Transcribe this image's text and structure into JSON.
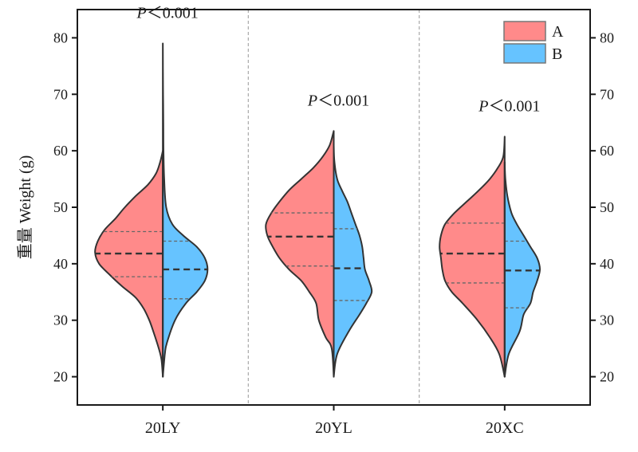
{
  "chart_data": {
    "type": "violin",
    "ylabel": "重量 Weight (g)",
    "ylim": [
      15,
      85
    ],
    "yticks": [
      20,
      30,
      40,
      50,
      60,
      70,
      80
    ],
    "categories": [
      "20LY",
      "20YL",
      "20XC"
    ],
    "legend": {
      "placement": "top-right",
      "entries": [
        {
          "name": "A",
          "color": "#ff8a8a"
        },
        {
          "name": "B",
          "color": "#66c3ff"
        }
      ]
    },
    "annotations": [
      {
        "category": "20LY",
        "italic": "P",
        "text": "＜0.001",
        "y": 83.5
      },
      {
        "category": "20YL",
        "italic": "P",
        "text": "＜0.001",
        "y": 68.0
      },
      {
        "category": "20XC",
        "italic": "P",
        "text": "＜0.001",
        "y": 67.0
      }
    ],
    "violins": [
      {
        "category": "20LY",
        "A": {
          "color": "#ff8a8a",
          "median": 41.8,
          "q1": 37.7,
          "q3": 45.7,
          "profile": [
            [
              20,
              0
            ],
            [
              23,
              0.02
            ],
            [
              25,
              0.06
            ],
            [
              28,
              0.14
            ],
            [
              30,
              0.2
            ],
            [
              32,
              0.28
            ],
            [
              34,
              0.4
            ],
            [
              36,
              0.6
            ],
            [
              38,
              0.78
            ],
            [
              40,
              0.94
            ],
            [
              42,
              1.0
            ],
            [
              44,
              0.96
            ],
            [
              46,
              0.86
            ],
            [
              48,
              0.7
            ],
            [
              50,
              0.56
            ],
            [
              52,
              0.4
            ],
            [
              54,
              0.22
            ],
            [
              56,
              0.1
            ],
            [
              58,
              0.04
            ],
            [
              60,
              0.0
            ]
          ]
        },
        "B": {
          "color": "#66c3ff",
          "median": 39.0,
          "q1": 33.8,
          "q3": 44.0,
          "profile": [
            [
              20,
              0
            ],
            [
              24,
              0.03
            ],
            [
              26,
              0.06
            ],
            [
              30,
              0.18
            ],
            [
              33,
              0.34
            ],
            [
              35,
              0.5
            ],
            [
              37,
              0.62
            ],
            [
              39,
              0.66
            ],
            [
              41,
              0.62
            ],
            [
              43,
              0.5
            ],
            [
              45,
              0.3
            ],
            [
              47,
              0.14
            ],
            [
              50,
              0.05
            ],
            [
              55,
              0.02
            ],
            [
              60,
              0.01
            ],
            [
              65,
              0.008
            ],
            [
              70,
              0.004
            ],
            [
              75,
              0.002
            ],
            [
              79,
              0
            ]
          ]
        }
      },
      {
        "category": "20YL",
        "A": {
          "color": "#ff8a8a",
          "median": 44.8,
          "q1": 39.6,
          "q3": 49.0,
          "profile": [
            [
              20,
              0
            ],
            [
              25,
              0.03
            ],
            [
              27,
              0.12
            ],
            [
              30,
              0.22
            ],
            [
              33,
              0.26
            ],
            [
              35,
              0.36
            ],
            [
              37,
              0.48
            ],
            [
              39,
              0.66
            ],
            [
              41,
              0.8
            ],
            [
              43,
              0.9
            ],
            [
              45,
              0.98
            ],
            [
              47,
              1.0
            ],
            [
              49,
              0.92
            ],
            [
              51,
              0.8
            ],
            [
              53,
              0.66
            ],
            [
              55,
              0.48
            ],
            [
              57,
              0.3
            ],
            [
              59,
              0.16
            ],
            [
              61,
              0.06
            ],
            [
              63.5,
              0
            ]
          ]
        },
        "B": {
          "color": "#66c3ff",
          "median": 39.2,
          "q1": 33.5,
          "q3": 46.2,
          "profile": [
            [
              20,
              0
            ],
            [
              24,
              0.05
            ],
            [
              28,
              0.22
            ],
            [
              31,
              0.38
            ],
            [
              33,
              0.48
            ],
            [
              35,
              0.56
            ],
            [
              37,
              0.52
            ],
            [
              39,
              0.46
            ],
            [
              41,
              0.44
            ],
            [
              43,
              0.42
            ],
            [
              45,
              0.38
            ],
            [
              47,
              0.32
            ],
            [
              49,
              0.26
            ],
            [
              51,
              0.2
            ],
            [
              53,
              0.12
            ],
            [
              55,
              0.05
            ],
            [
              58,
              0.01
            ],
            [
              61,
              0
            ]
          ]
        }
      },
      {
        "category": "20XC",
        "A": {
          "color": "#ff8a8a",
          "median": 41.8,
          "q1": 36.6,
          "q3": 47.2,
          "profile": [
            [
              20,
              0
            ],
            [
              24,
              0.08
            ],
            [
              27,
              0.22
            ],
            [
              30,
              0.4
            ],
            [
              33,
              0.62
            ],
            [
              35,
              0.78
            ],
            [
              37,
              0.88
            ],
            [
              39,
              0.92
            ],
            [
              41,
              0.94
            ],
            [
              43,
              0.96
            ],
            [
              45,
              0.94
            ],
            [
              47,
              0.88
            ],
            [
              49,
              0.74
            ],
            [
              51,
              0.56
            ],
            [
              53,
              0.38
            ],
            [
              55,
              0.22
            ],
            [
              57,
              0.1
            ],
            [
              59,
              0.02
            ],
            [
              62.5,
              0
            ]
          ]
        },
        "B": {
          "color": "#66c3ff",
          "median": 38.8,
          "q1": 32.2,
          "q3": 44.0,
          "profile": [
            [
              20,
              0
            ],
            [
              24,
              0.06
            ],
            [
              28,
              0.22
            ],
            [
              31,
              0.28
            ],
            [
              33,
              0.38
            ],
            [
              35,
              0.42
            ],
            [
              37,
              0.48
            ],
            [
              39,
              0.52
            ],
            [
              41,
              0.48
            ],
            [
              43,
              0.38
            ],
            [
              45,
              0.28
            ],
            [
              47,
              0.18
            ],
            [
              49,
              0.1
            ],
            [
              52,
              0.04
            ],
            [
              55,
              0.01
            ],
            [
              58,
              0
            ]
          ]
        }
      }
    ]
  }
}
